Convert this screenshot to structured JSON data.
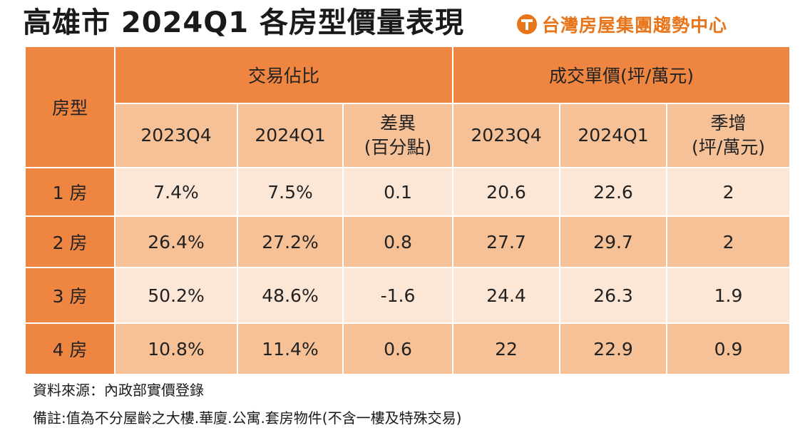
{
  "title": "高雄市 2024Q1 各房型價量表現",
  "brand": {
    "name": "台灣房屋集團趨勢中心",
    "logo_icon": "taiwan-realty-logo-icon",
    "accent": "#e8751a"
  },
  "colors": {
    "header": "#ee8540",
    "subheader": "#f6c196",
    "row_light": "#fce6d6",
    "row_dark": "#f6c196"
  },
  "table": {
    "col_room_type": "房型",
    "group_share": "交易佔比",
    "group_price": "成交單價(坪/萬元)",
    "sub": {
      "share_2023q4": "2023Q4",
      "share_2024q1": "2024Q1",
      "share_diff_line1": "差異",
      "share_diff_line2": "(百分點)",
      "price_2023q4": "2023Q4",
      "price_2024q1": "2024Q1",
      "price_diff_line1": "季增",
      "price_diff_line2": "(坪/萬元)"
    },
    "rows": [
      {
        "type": "1 房",
        "share_2023q4": "7.4%",
        "share_2024q1": "7.5%",
        "share_diff": "0.1",
        "price_2023q4": "20.6",
        "price_2024q1": "22.6",
        "price_diff": "2"
      },
      {
        "type": "2 房",
        "share_2023q4": "26.4%",
        "share_2024q1": "27.2%",
        "share_diff": "0.8",
        "price_2023q4": "27.7",
        "price_2024q1": "29.7",
        "price_diff": "2"
      },
      {
        "type": "3 房",
        "share_2023q4": "50.2%",
        "share_2024q1": "48.6%",
        "share_diff": "-1.6",
        "price_2023q4": "24.4",
        "price_2024q1": "26.3",
        "price_diff": "1.9"
      },
      {
        "type": "4 房",
        "share_2023q4": "10.8%",
        "share_2024q1": "11.4%",
        "share_diff": "0.6",
        "price_2023q4": "22",
        "price_2024q1": "22.9",
        "price_diff": "0.9"
      }
    ]
  },
  "footer": {
    "source": "資料來源：內政部實價登錄",
    "note": "備註:值為不分屋齡之大樓.華廈.公寓.套房物件(不含一樓及特殊交易)"
  },
  "chart_data": {
    "type": "table",
    "title": "高雄市 2024Q1 各房型價量表現",
    "columns": [
      "房型",
      "交易佔比 2023Q4",
      "交易佔比 2024Q1",
      "差異(百分點)",
      "成交單價 2023Q4",
      "成交單價 2024Q1",
      "季增(坪/萬元)"
    ],
    "categories": [
      "1 房",
      "2 房",
      "3 房",
      "4 房"
    ],
    "series": [
      {
        "name": "交易佔比 2023Q4",
        "values": [
          7.4,
          26.4,
          50.2,
          10.8
        ]
      },
      {
        "name": "交易佔比 2024Q1",
        "values": [
          7.5,
          27.2,
          48.6,
          11.4
        ]
      },
      {
        "name": "差異(百分點)",
        "values": [
          0.1,
          0.8,
          -1.6,
          0.6
        ]
      },
      {
        "name": "成交單價 2023Q4",
        "values": [
          20.6,
          27.7,
          24.4,
          22
        ]
      },
      {
        "name": "成交單價 2024Q1",
        "values": [
          22.6,
          29.7,
          26.3,
          22.9
        ]
      },
      {
        "name": "季增(坪/萬元)",
        "values": [
          2,
          2,
          1.9,
          0.9
        ]
      }
    ]
  }
}
